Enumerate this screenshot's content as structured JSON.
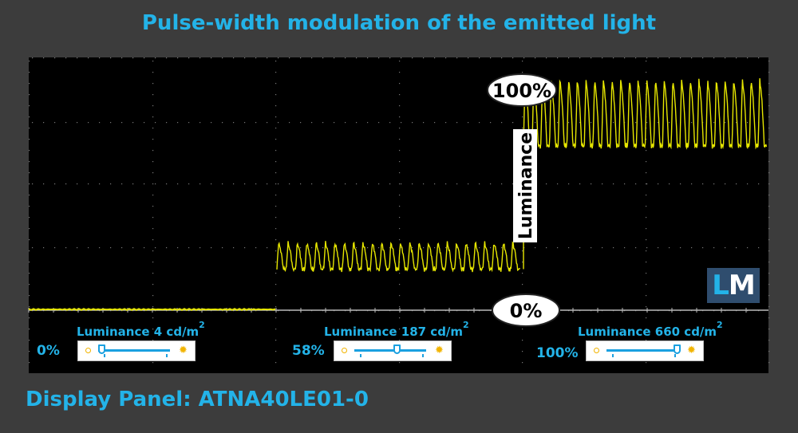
{
  "title": "Pulse-width modulation of the emitted light",
  "footer": "Display Panel: ATNA40LE01-0",
  "chart_data": {
    "type": "line",
    "title": "Pulse-width modulation of the emitted light",
    "ylabel": "Luminance",
    "y_markers": [
      "100%",
      "0%"
    ],
    "grid": true,
    "segments": [
      {
        "brightness_setting": "0%",
        "luminance_label": "Luminance 4 cd/m",
        "slider_fraction": 0.0,
        "signal": {
          "baseline_pct": 0,
          "peak_pct": 0,
          "min_pct": 0,
          "cycles": 0
        }
      },
      {
        "brightness_setting": "58%",
        "luminance_label": "Luminance 187 cd/m",
        "slider_fraction": 0.58,
        "signal": {
          "baseline_pct": 17,
          "peak_pct": 28,
          "min_pct": 17,
          "cycles": 26
        }
      },
      {
        "brightness_setting": "100%",
        "luminance_label": "Luminance 660 cd/m",
        "slider_fraction": 1.0,
        "signal": {
          "baseline_pct": 68,
          "peak_pct": 96,
          "min_pct": 68,
          "cycles": 28
        }
      }
    ],
    "unit_superscript": "2"
  },
  "logo": {
    "first": "L",
    "second": "M"
  },
  "colors": {
    "accent": "#23b3e8",
    "signal": "#e6e600",
    "background": "#3c3c3c",
    "plot": "#000000"
  }
}
